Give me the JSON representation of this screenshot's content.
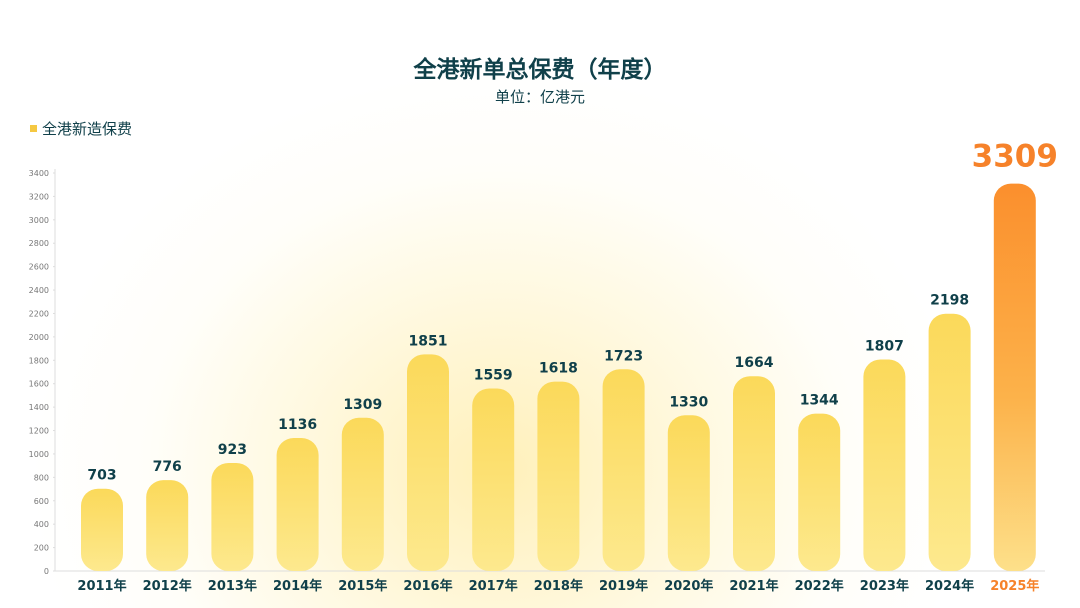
{
  "chart_data": {
    "type": "bar",
    "title": "全港新单总保费（年度）",
    "subtitle": "单位：亿港元",
    "legend": [
      "全港新造保费"
    ],
    "categories": [
      "2011年",
      "2012年",
      "2013年",
      "2014年",
      "2015年",
      "2016年",
      "2017年",
      "2018年",
      "2019年",
      "2020年",
      "2021年",
      "2022年",
      "2023年",
      "2024年",
      "2025年"
    ],
    "series": [
      {
        "name": "全港新造保费",
        "values": [
          703,
          776,
          923,
          1136,
          1309,
          1851,
          1559,
          1618,
          1723,
          1330,
          1664,
          1344,
          1807,
          2198,
          3309
        ]
      }
    ],
    "ylim": [
      0,
      3400
    ],
    "yticks": [
      0,
      200,
      400,
      600,
      800,
      1000,
      1200,
      1400,
      1600,
      1800,
      2000,
      2200,
      2400,
      2600,
      2800,
      3000,
      3200,
      3400
    ],
    "highlight_index": 14,
    "grid": false,
    "legend_position": "top-left"
  },
  "colors": {
    "bar": "#fbe27a",
    "bar_highlight": "#fb8f2d",
    "label": "#10404a",
    "label_highlight": "#f6822a",
    "axis_text": "#777777"
  }
}
